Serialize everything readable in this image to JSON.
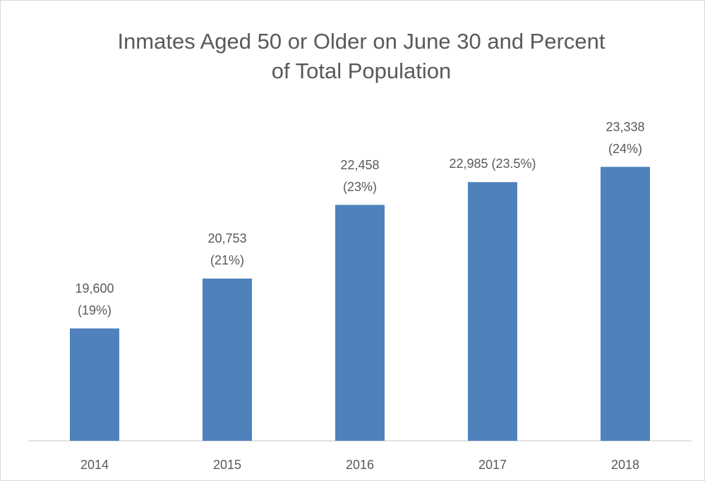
{
  "chart_data": {
    "type": "bar",
    "title": "Inmates Aged 50 or Older on June 30 and Percent of Total Population",
    "categories": [
      "2014",
      "2015",
      "2016",
      "2017",
      "2018"
    ],
    "values": [
      19600,
      20753,
      22458,
      22985,
      23338
    ],
    "value_labels": [
      "19,600\n(19%)",
      "20,753\n(21%)",
      "22,458\n(23%)",
      "22,985 (23.5%)",
      "23,338\n(24%)"
    ],
    "color": "#4f81bd",
    "ylim": [
      17000,
      24000
    ]
  }
}
